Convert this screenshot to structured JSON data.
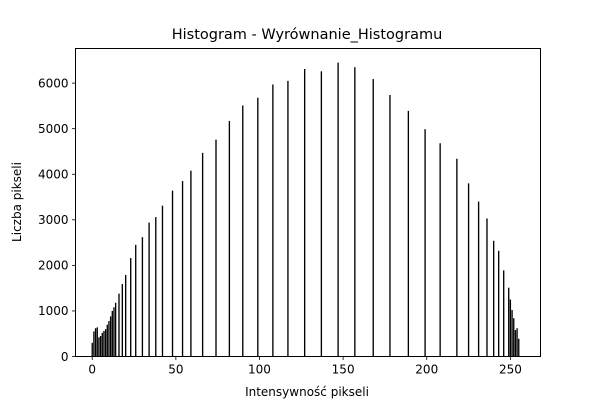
{
  "chart_data": {
    "type": "bar",
    "title": "Histogram - Wyrównanie_Histogramu",
    "xlabel": "Intensywność pikseli",
    "ylabel": "Liczba pikseli",
    "xlim": [
      -10,
      268
    ],
    "ylim": [
      0,
      6760
    ],
    "xticks": [
      0,
      50,
      100,
      150,
      200,
      250
    ],
    "yticks": [
      0,
      1000,
      2000,
      3000,
      4000,
      5000,
      6000
    ],
    "grid": false,
    "bar_color": "#000000",
    "x": [
      0,
      1,
      2,
      3,
      4,
      5,
      6,
      7,
      8,
      9,
      10,
      11,
      12,
      13,
      14,
      16,
      18,
      20,
      23,
      26,
      30,
      34,
      38,
      42,
      48,
      54,
      59,
      66,
      74,
      82,
      90,
      99,
      108,
      117,
      127,
      137,
      147,
      157,
      168,
      178,
      189,
      199,
      208,
      218,
      225,
      231,
      236,
      240,
      243,
      246,
      249,
      250,
      251,
      252,
      253,
      254,
      255
    ],
    "values": [
      300,
      550,
      620,
      640,
      420,
      450,
      520,
      560,
      600,
      700,
      780,
      880,
      1000,
      1080,
      1180,
      1380,
      1590,
      1790,
      2160,
      2450,
      2620,
      2940,
      3060,
      3310,
      3640,
      3850,
      4080,
      4470,
      4760,
      5170,
      5510,
      5680,
      5970,
      6050,
      6310,
      6260,
      6450,
      6350,
      6090,
      5740,
      5390,
      4990,
      4680,
      4340,
      3800,
      3400,
      3030,
      2540,
      2320,
      1890,
      1510,
      1250,
      1020,
      840,
      580,
      620,
      390
    ]
  }
}
